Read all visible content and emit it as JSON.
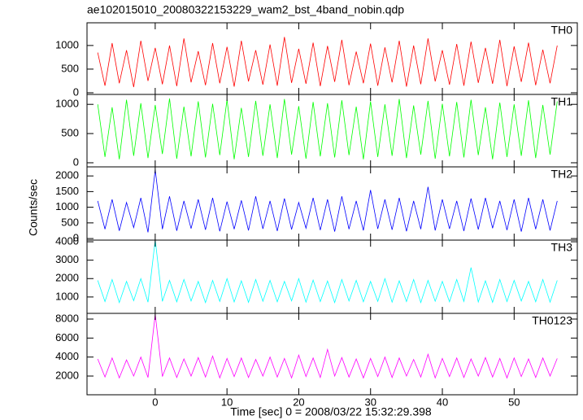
{
  "title": "ae102015010_20080322153229_wam2_bst_4band_nobin.qdp",
  "xlabel": "Time [sec] 0 = 2008/03/22 15:32:29.398",
  "ylabel": "Counts/sec",
  "xlim": [
    -9.5,
    58.8
  ],
  "xticks": [
    0,
    10,
    20,
    30,
    40,
    50
  ],
  "chart_data": [
    {
      "type": "line",
      "name": "TH0",
      "color": "#ff0000",
      "ylim": [
        -35,
        1480
      ],
      "yticks": [
        0,
        500,
        1000
      ],
      "x": [
        -8,
        -7,
        -6,
        -5,
        -4,
        -3,
        -2,
        -1,
        0,
        1,
        2,
        3,
        4,
        5,
        6,
        7,
        8,
        9,
        10,
        11,
        12,
        13,
        14,
        15,
        16,
        17,
        18,
        19,
        20,
        21,
        22,
        23,
        24,
        25,
        26,
        27,
        28,
        29,
        30,
        31,
        32,
        33,
        34,
        35,
        36,
        37,
        38,
        39,
        40,
        41,
        42,
        43,
        44,
        45,
        46,
        47,
        48,
        49,
        50,
        51,
        52,
        53,
        54,
        55,
        56
      ],
      "values": [
        850,
        150,
        1050,
        200,
        900,
        120,
        1100,
        250,
        950,
        180,
        1000,
        140,
        1150,
        220,
        880,
        160,
        1050,
        200,
        970,
        130,
        1100,
        240,
        900,
        170,
        1020,
        150,
        1180,
        210,
        930,
        190,
        1060,
        140,
        990,
        230,
        1120,
        160,
        870,
        200,
        1040,
        150,
        960,
        220,
        1100,
        130,
        1000,
        180,
        1150,
        240,
        900,
        170,
        1030,
        150,
        1080,
        210,
        950,
        190,
        1120,
        140,
        980,
        230,
        1060,
        160,
        910,
        200,
        1000
      ]
    },
    {
      "type": "line",
      "name": "TH1",
      "color": "#00ff00",
      "ylim": [
        -70,
        1170
      ],
      "yticks": [
        0,
        500,
        1000
      ],
      "x": [
        -8,
        -7,
        -6,
        -5,
        -4,
        -3,
        -2,
        -1,
        0,
        1,
        2,
        3,
        4,
        5,
        6,
        7,
        8,
        9,
        10,
        11,
        12,
        13,
        14,
        15,
        16,
        17,
        18,
        19,
        20,
        21,
        22,
        23,
        24,
        25,
        26,
        27,
        28,
        29,
        30,
        31,
        32,
        33,
        34,
        35,
        36,
        37,
        38,
        39,
        40,
        41,
        42,
        43,
        44,
        45,
        46,
        47,
        48,
        49,
        50,
        51,
        52,
        53,
        54,
        55,
        56
      ],
      "values": [
        1000,
        100,
        950,
        60,
        1080,
        120,
        1020,
        80,
        990,
        150,
        1100,
        70,
        960,
        110,
        1050,
        90,
        1010,
        130,
        1080,
        60,
        940,
        100,
        1060,
        120,
        1000,
        80,
        1090,
        140,
        970,
        70,
        1040,
        110,
        1020,
        90,
        1070,
        130,
        960,
        60,
        1050,
        100,
        1000,
        120,
        1090,
        80,
        980,
        140,
        1060,
        70,
        1010,
        110,
        1040,
        90,
        1080,
        130,
        950,
        60,
        1030,
        100,
        1000,
        120,
        1070,
        80,
        990,
        140,
        1050
      ]
    },
    {
      "type": "line",
      "name": "TH2",
      "color": "#0000ff",
      "ylim": [
        -50,
        2290
      ],
      "yticks": [
        0,
        500,
        1000,
        1500,
        2000
      ],
      "x": [
        -8,
        -7,
        -6,
        -5,
        -4,
        -3,
        -2,
        -1,
        0,
        1,
        2,
        3,
        4,
        5,
        6,
        7,
        8,
        9,
        10,
        11,
        12,
        13,
        14,
        15,
        16,
        17,
        18,
        19,
        20,
        21,
        22,
        23,
        24,
        25,
        26,
        27,
        28,
        29,
        30,
        31,
        32,
        33,
        34,
        35,
        36,
        37,
        38,
        39,
        40,
        41,
        42,
        43,
        44,
        45,
        46,
        47,
        48,
        49,
        50,
        51,
        52,
        53,
        54,
        55,
        56
      ],
      "values": [
        1200,
        300,
        1250,
        250,
        1150,
        350,
        1300,
        200,
        2200,
        300,
        1350,
        250,
        1200,
        320,
        1250,
        280,
        1300,
        230,
        1180,
        300,
        1220,
        260,
        1350,
        310,
        1200,
        240,
        1280,
        290,
        1150,
        330,
        1300,
        270,
        1250,
        220,
        1350,
        300,
        1200,
        260,
        1550,
        310,
        1250,
        280,
        1300,
        230,
        1200,
        300,
        1650,
        260,
        1250,
        310,
        1200,
        240,
        1280,
        290,
        1300,
        330,
        1200,
        270,
        1250,
        220,
        1300,
        300,
        1250,
        260,
        1200
      ]
    },
    {
      "type": "line",
      "name": "TH3",
      "color": "#00ffff",
      "ylim": [
        110,
        4090
      ],
      "yticks": [
        1000,
        2000,
        3000,
        4000
      ],
      "x": [
        -8,
        -7,
        -6,
        -5,
        -4,
        -3,
        -2,
        -1,
        0,
        1,
        2,
        3,
        4,
        5,
        6,
        7,
        8,
        9,
        10,
        11,
        12,
        13,
        14,
        15,
        16,
        17,
        18,
        19,
        20,
        21,
        22,
        23,
        24,
        25,
        26,
        27,
        28,
        29,
        30,
        31,
        32,
        33,
        34,
        35,
        36,
        37,
        38,
        39,
        40,
        41,
        42,
        43,
        44,
        45,
        46,
        47,
        48,
        49,
        50,
        51,
        52,
        53,
        54,
        55,
        56
      ],
      "values": [
        1900,
        750,
        1950,
        700,
        1850,
        800,
        2000,
        720,
        4100,
        760,
        1900,
        740,
        1950,
        780,
        1850,
        700,
        1900,
        760,
        2000,
        730,
        1880,
        710,
        1950,
        770,
        1900,
        740,
        1850,
        790,
        2000,
        720,
        1920,
        750,
        1870,
        700,
        1950,
        780,
        1900,
        740,
        1850,
        760,
        2000,
        720,
        1880,
        750,
        1950,
        700,
        1900,
        770,
        1850,
        740,
        1950,
        760,
        2600,
        730,
        1880,
        710,
        1950,
        750,
        1900,
        780,
        1850,
        740,
        1950,
        720,
        1900
      ]
    },
    {
      "type": "line",
      "name": "TH0123",
      "color": "#ff00ff",
      "ylim": [
        30,
        8600
      ],
      "yticks": [
        2000,
        4000,
        6000,
        8000
      ],
      "x": [
        -8,
        -7,
        -6,
        -5,
        -4,
        -3,
        -2,
        -1,
        0,
        1,
        2,
        3,
        4,
        5,
        6,
        7,
        8,
        9,
        10,
        11,
        12,
        13,
        14,
        15,
        16,
        17,
        18,
        19,
        20,
        21,
        22,
        23,
        24,
        25,
        26,
        27,
        28,
        29,
        30,
        31,
        32,
        33,
        34,
        35,
        36,
        37,
        38,
        39,
        40,
        41,
        42,
        43,
        44,
        45,
        46,
        47,
        48,
        49,
        50,
        51,
        52,
        53,
        54,
        55,
        56
      ],
      "values": [
        3800,
        1900,
        3900,
        1800,
        3700,
        2000,
        4000,
        1850,
        8500,
        1950,
        3900,
        1850,
        3800,
        2000,
        3950,
        1900,
        4100,
        1800,
        3850,
        1950,
        3900,
        1850,
        3750,
        2000,
        4000,
        1900,
        3850,
        1800,
        4200,
        1950,
        3900,
        1850,
        4800,
        2000,
        3950,
        1900,
        3800,
        1800,
        3850,
        1950,
        4000,
        1850,
        3900,
        2000,
        3750,
        1900,
        4300,
        1800,
        3850,
        1950,
        3900,
        1850,
        3800,
        2000,
        3950,
        1900,
        3850,
        1800,
        3900,
        1950,
        3800,
        1850,
        3900,
        2000,
        3850
      ]
    }
  ]
}
